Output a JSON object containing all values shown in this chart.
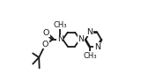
{
  "line_color": "#1a1a1a",
  "line_width": 1.3,
  "font_size": 6.8,
  "font_size_small": 6.0,
  "bg": "white",
  "xlim": [
    0,
    1
  ],
  "ylim": [
    0,
    1
  ]
}
